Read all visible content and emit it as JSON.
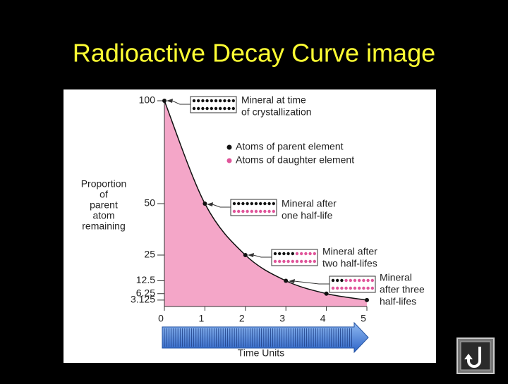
{
  "chart_data": {
    "type": "area",
    "title": "Radioactive Decay Curve image",
    "x": [
      0,
      1,
      2,
      3,
      4,
      5
    ],
    "values": [
      100,
      50,
      25,
      12.5,
      6.25,
      3.125
    ],
    "color": "#111111",
    "area_color": "#f4a6c8",
    "xlim": [
      0,
      5
    ],
    "xticks": [
      0,
      1,
      2,
      3,
      4,
      5
    ],
    "ylim": [
      0,
      100
    ],
    "yticks": [
      100,
      50,
      25,
      12.5,
      6.25,
      3.125
    ],
    "y_label": [
      "Proportion",
      "of",
      "parent",
      "atom",
      "remaining"
    ],
    "x_label": "Time Units",
    "legend": [
      {
        "name": "Atoms of parent element",
        "color": "#111111"
      },
      {
        "name": "Atoms of daughter element",
        "color": "#e0559a"
      }
    ],
    "annotations": [
      [
        "Mineral at time",
        "of crystallization"
      ],
      [
        "Mineral after",
        "one half-life"
      ],
      [
        "Mineral after",
        "two half-lifes"
      ],
      [
        "Mineral",
        "after three",
        "half-lifes"
      ]
    ]
  }
}
